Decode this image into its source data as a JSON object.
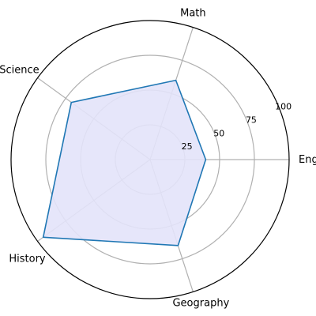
{
  "chart_data": {
    "type": "radar",
    "categories": [
      "English",
      "Math",
      "Science",
      "History",
      "Geography"
    ],
    "series": [
      {
        "values": [
          40,
          60,
          70,
          95,
          65
        ]
      }
    ],
    "rlim": [
      0,
      100
    ],
    "rticks": [
      25,
      50,
      75,
      100
    ],
    "grid": true,
    "colors": {
      "line": "#1f77b4",
      "fill": "#e3e3fa",
      "grid": "#b0b0b0",
      "outer_ring": "#000000"
    }
  }
}
